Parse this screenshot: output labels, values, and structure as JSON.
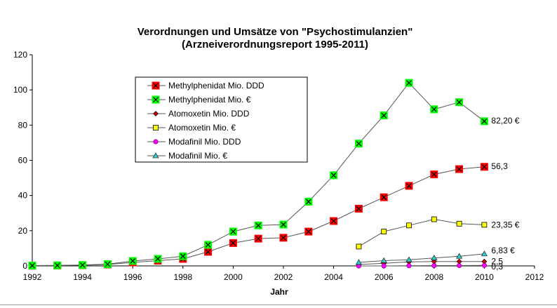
{
  "chart_data": {
    "type": "line",
    "title": "Verordnungen und Umsätze von \"Psychostimulanzien\"",
    "subtitle": "(Arzneiverordnungsreport 1995-2011)",
    "xlabel": "Jahr",
    "ylabel": "",
    "xlim": [
      1992,
      2012
    ],
    "ylim": [
      0,
      120
    ],
    "xticks": [
      1992,
      1994,
      1996,
      1998,
      2000,
      2002,
      2004,
      2006,
      2008,
      2010,
      2012
    ],
    "yticks": [
      0,
      20,
      40,
      60,
      80,
      100,
      120
    ],
    "grid": false,
    "legend_position": "top-left",
    "series": [
      {
        "name": "Methylphenidat Mio. DDD",
        "color": "#ff0000",
        "marker": "square-x",
        "x": [
          1992,
          1993,
          1994,
          1995,
          1996,
          1997,
          1998,
          1999,
          2000,
          2001,
          2002,
          2003,
          2004,
          2005,
          2006,
          2007,
          2008,
          2009,
          2010
        ],
        "values": [
          0.1,
          0.2,
          0.4,
          0.8,
          2.0,
          3.0,
          4.0,
          8.0,
          13.0,
          15.5,
          16.0,
          19.5,
          25.5,
          32.5,
          39.0,
          45.5,
          52.0,
          55.0,
          56.3
        ],
        "end_label": "56,3"
      },
      {
        "name": "Methylphenidat Mio. €",
        "color": "#00ff00",
        "marker": "square-x",
        "x": [
          1992,
          1993,
          1994,
          1995,
          1996,
          1997,
          1998,
          1999,
          2000,
          2001,
          2002,
          2003,
          2004,
          2005,
          2006,
          2007,
          2008,
          2009,
          2010
        ],
        "values": [
          0.2,
          0.3,
          0.5,
          1.0,
          2.8,
          4.0,
          5.5,
          12.0,
          19.5,
          23.0,
          23.5,
          36.5,
          51.5,
          69.5,
          85.5,
          104.0,
          89.0,
          93.0,
          82.2
        ],
        "end_label": "82,20 €"
      },
      {
        "name": "Atomoxetin Mio. DDD",
        "color": "#cc0000",
        "marker": "diamond",
        "x": [
          2005,
          2006,
          2007,
          2008,
          2009,
          2010
        ],
        "values": [
          0.8,
          1.5,
          2.3,
          2.5,
          2.5,
          2.5
        ],
        "end_label": "2,5"
      },
      {
        "name": "Atomoxetin Mio. €",
        "color": "#ffff00",
        "marker": "square",
        "x": [
          2005,
          2006,
          2007,
          2008,
          2009,
          2010
        ],
        "values": [
          11.0,
          19.5,
          23.0,
          26.5,
          24.0,
          23.35
        ],
        "end_label": "23,35 €"
      },
      {
        "name": "Modafinil Mio. DDD",
        "color": "#ff00ff",
        "marker": "circle",
        "x": [
          2005,
          2006,
          2007,
          2008,
          2009,
          2010
        ],
        "values": [
          0.0,
          0.0,
          0.1,
          0.2,
          0.2,
          0.3
        ],
        "end_label": "0,3"
      },
      {
        "name": "Modafinil Mio. €",
        "color": "#33cccc",
        "marker": "triangle",
        "x": [
          2005,
          2006,
          2007,
          2008,
          2009,
          2010
        ],
        "values": [
          2.0,
          3.0,
          3.5,
          4.5,
          5.5,
          6.83
        ],
        "end_label": "6,83 €"
      }
    ]
  }
}
